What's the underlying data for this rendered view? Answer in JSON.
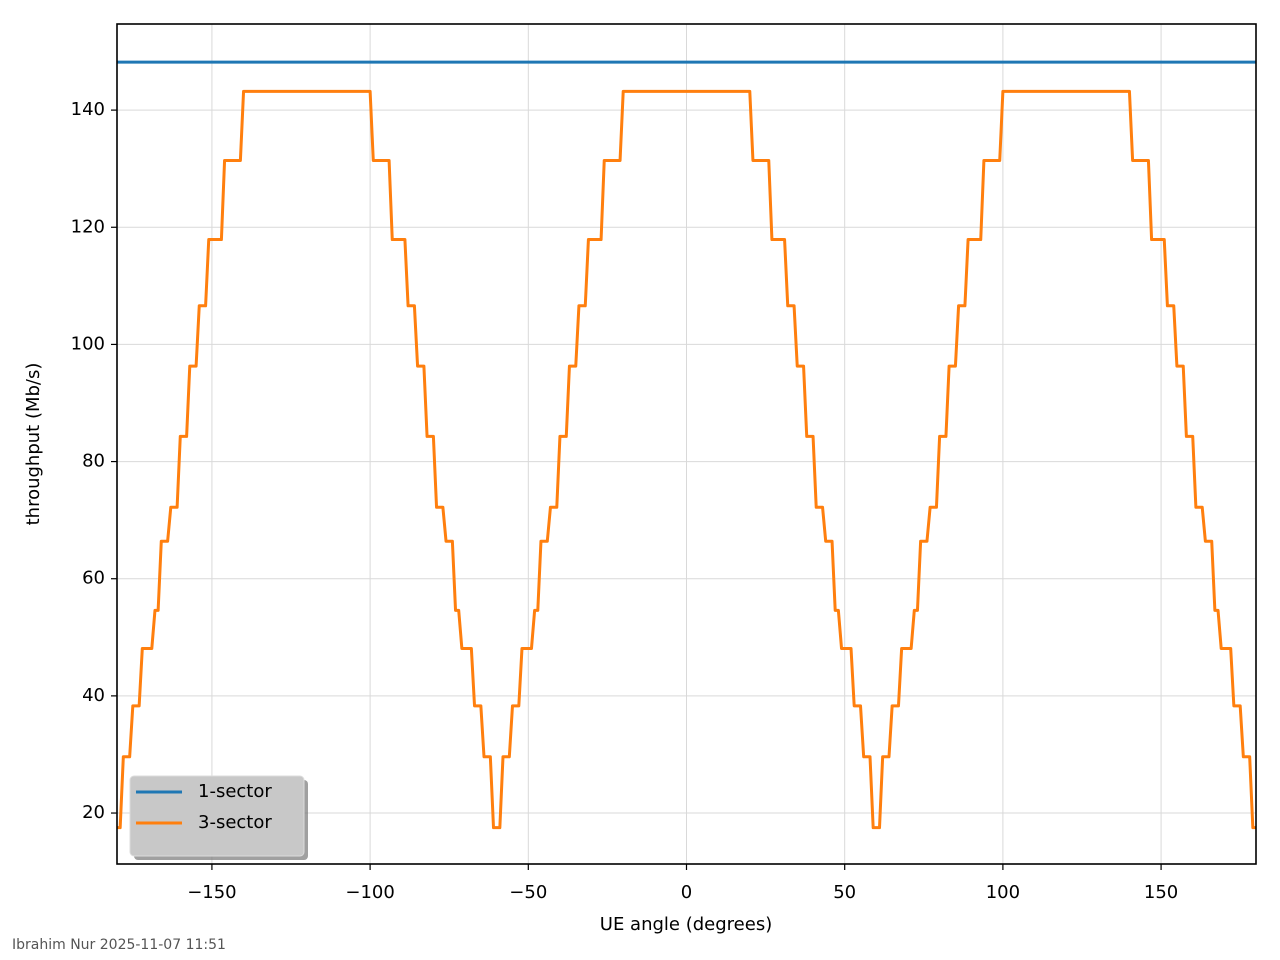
{
  "chart_data": {
    "type": "line",
    "xlabel": "UE angle (degrees)",
    "ylabel": "throughput (Mb/s)",
    "footer": "Ibrahim Nur 2025-11-07 11:51",
    "xlim": [
      -180,
      180
    ],
    "ylim": [
      11.3,
      154.7
    ],
    "xticks": [
      {
        "value": -150,
        "label": "−150"
      },
      {
        "value": -100,
        "label": "−100"
      },
      {
        "value": -50,
        "label": "−50"
      },
      0,
      50,
      100,
      150
    ],
    "yticks": [
      20,
      40,
      60,
      80,
      100,
      120,
      140
    ],
    "grid": true,
    "legend": "lower left",
    "series": [
      {
        "name": "1-sector",
        "color": "#1f77b4",
        "x": [
          -180,
          180
        ],
        "values": [
          148.2,
          148.2
        ]
      },
      {
        "name": "3-sector",
        "color": "#ff7f0e",
        "x": [
          -180,
          -179,
          -178,
          -176,
          -175,
          -173,
          -172,
          -169,
          -168,
          -167,
          -166,
          -164,
          -163,
          -161,
          -160,
          -158,
          -157,
          -155,
          -154,
          -152,
          -151,
          -147,
          -146,
          -141,
          -140,
          -100,
          -99,
          -94,
          -93,
          -89,
          -88,
          -86,
          -85,
          -83,
          -82,
          -80,
          -79,
          -77,
          -76,
          -74,
          -73,
          -72,
          -71,
          -68,
          -67,
          -65,
          -64,
          -62,
          -61,
          -60,
          -59,
          -58,
          -56,
          -55,
          -53,
          -52,
          -49,
          -48,
          -47,
          -46,
          -44,
          -43,
          -41,
          -40,
          -38,
          -37,
          -35,
          -34,
          -32,
          -31,
          -27,
          -26,
          -21,
          -20,
          20,
          21,
          26,
          27,
          31,
          32,
          34,
          35,
          37,
          38,
          40,
          41,
          43,
          44,
          46,
          47,
          48,
          49,
          52,
          53,
          55,
          56,
          58,
          59,
          60,
          61,
          62,
          64,
          65,
          67,
          68,
          71,
          72,
          73,
          74,
          76,
          77,
          79,
          80,
          82,
          83,
          85,
          86,
          88,
          89,
          93,
          94,
          99,
          100,
          140,
          141,
          146,
          147,
          151,
          152,
          154,
          155,
          157,
          158,
          160,
          161,
          163,
          164,
          166,
          167,
          168,
          169,
          172,
          173,
          175,
          176,
          178,
          179,
          180
        ],
        "values": [
          17.5,
          17.5,
          29.6,
          29.6,
          38.3,
          38.3,
          48.1,
          48.1,
          54.6,
          54.6,
          66.4,
          66.4,
          72.2,
          72.2,
          84.3,
          84.3,
          96.3,
          96.3,
          106.6,
          106.6,
          117.9,
          117.9,
          131.4,
          131.4,
          143.2,
          143.2,
          131.4,
          131.4,
          117.9,
          117.9,
          106.6,
          106.6,
          96.3,
          96.3,
          84.3,
          84.3,
          72.2,
          72.2,
          66.4,
          66.4,
          54.6,
          54.6,
          48.1,
          48.1,
          38.3,
          38.3,
          29.6,
          29.6,
          17.5,
          17.5,
          17.5,
          29.6,
          29.6,
          38.3,
          38.3,
          48.1,
          48.1,
          54.6,
          54.6,
          66.4,
          66.4,
          72.2,
          72.2,
          84.3,
          84.3,
          96.3,
          96.3,
          106.6,
          106.6,
          117.9,
          117.9,
          131.4,
          131.4,
          143.2,
          143.2,
          131.4,
          131.4,
          117.9,
          117.9,
          106.6,
          106.6,
          96.3,
          96.3,
          84.3,
          84.3,
          72.2,
          72.2,
          66.4,
          66.4,
          54.6,
          54.6,
          48.1,
          48.1,
          38.3,
          38.3,
          29.6,
          29.6,
          17.5,
          17.5,
          17.5,
          29.6,
          29.6,
          38.3,
          38.3,
          48.1,
          48.1,
          54.6,
          54.6,
          66.4,
          66.4,
          72.2,
          72.2,
          84.3,
          84.3,
          96.3,
          96.3,
          106.6,
          106.6,
          117.9,
          117.9,
          131.4,
          131.4,
          143.2,
          143.2,
          131.4,
          131.4,
          117.9,
          117.9,
          106.6,
          106.6,
          96.3,
          96.3,
          84.3,
          84.3,
          72.2,
          72.2,
          66.4,
          66.4,
          54.6,
          54.6,
          48.1,
          48.1,
          38.3,
          38.3,
          29.6,
          29.6,
          17.5,
          17.5
        ]
      }
    ]
  }
}
